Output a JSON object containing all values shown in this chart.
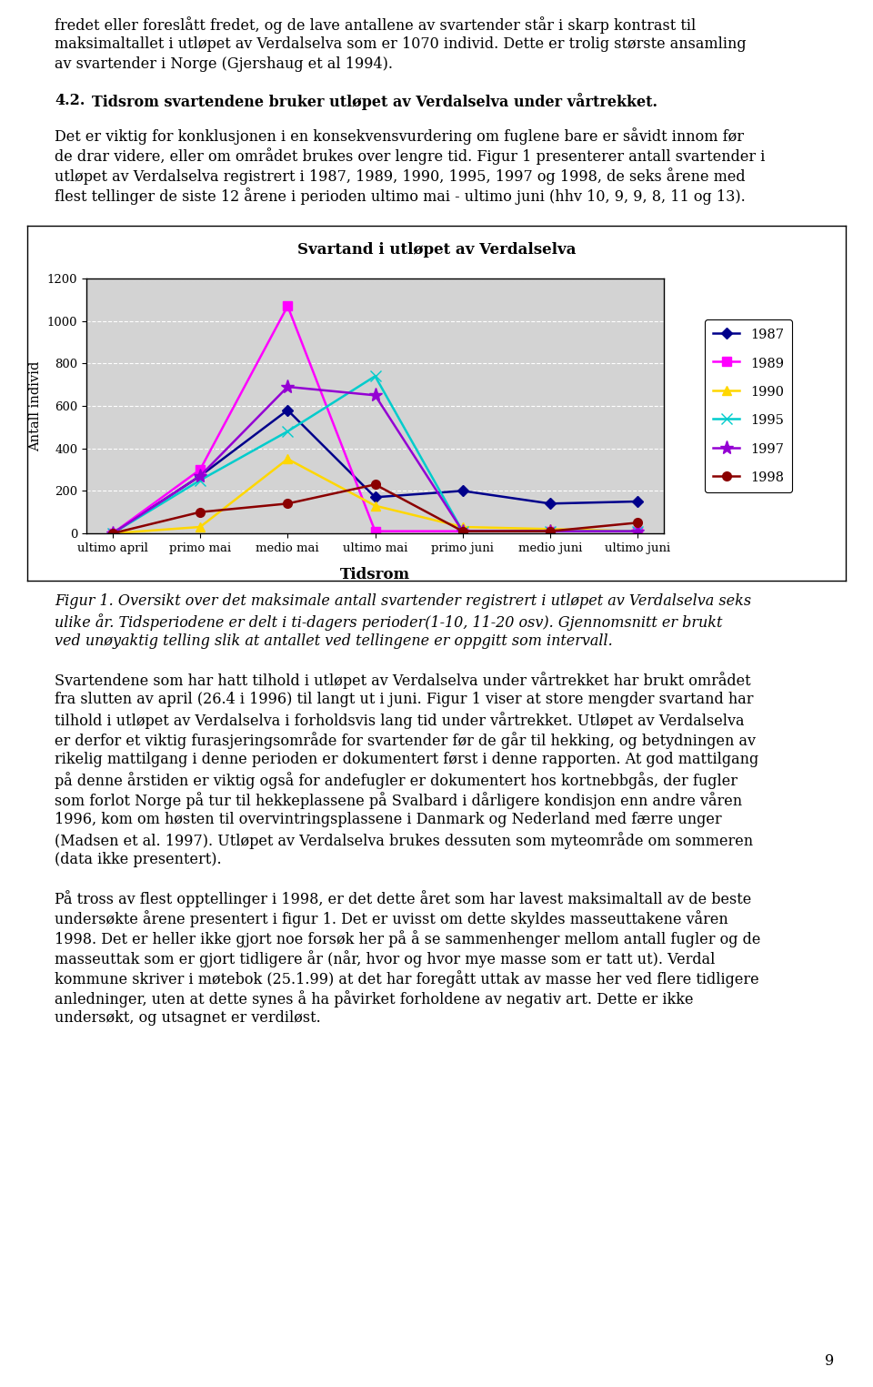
{
  "page_title_lines": [
    "fredet eller foreslått fredet, og de lave antallene av svartender står i skarp kontrast til",
    "maksimaltallet i utløpet av Verdalselva som er 1070 individ. Dette er trolig største ansamling",
    "av svartender i Norge (Gjershaug et al 1994)."
  ],
  "section_num": "4.2.",
  "section_title": "Tidsrom svartendene bruker utløpet av Verdalselva under vårtrekket.",
  "para1_lines": [
    "Det er viktig for konklusjonen i en konsekvensvurdering om fuglene bare er såvidt innom før",
    "de drar videre, eller om området brukes over lengre tid. Figur 1 presenterer antall svartender i",
    "utløpet av Verdalselva registrert i 1987, 1989, 1990, 1995, 1997 og 1998, de seks årene med",
    "flest tellinger de siste 12 årene i perioden ultimo mai - ultimo juni (hhv 10, 9, 9, 8, 11 og 13)."
  ],
  "chart_title": "Svartand i utløpet av Verdalselva",
  "x_labels": [
    "ultimo april",
    "primo mai",
    "medio mai",
    "ultimo mai",
    "primo juni",
    "medio juni",
    "ultimo juni"
  ],
  "x_label": "Tidsrom",
  "y_label": "Antall individ",
  "y_ticks": [
    0,
    200,
    400,
    600,
    800,
    1000,
    1200
  ],
  "series_1987": [
    0,
    270,
    580,
    170,
    200,
    140,
    150
  ],
  "series_1989": [
    0,
    300,
    1070,
    10,
    10,
    10,
    10
  ],
  "series_1990": [
    0,
    30,
    350,
    130,
    30,
    20,
    10
  ],
  "series_1995": [
    0,
    250,
    480,
    740,
    10,
    10,
    10
  ],
  "series_1997": [
    0,
    270,
    690,
    650,
    10,
    10,
    10
  ],
  "series_1998": [
    0,
    100,
    140,
    230,
    10,
    10,
    50
  ],
  "color_1987": "#00008B",
  "color_1989": "#FF00FF",
  "color_1990": "#FFD700",
  "color_1995": "#00CCCC",
  "color_1997": "#9400D3",
  "color_1998": "#8B0000",
  "fig_caption_line1": "Figur 1. Oversikt over det maksimale antall svartender registrert i utløpet av Verdalselva seks",
  "fig_caption_line2": "ulike år. Tidsperiodene er delt i ti-dagers perioder(1-10, 11-20 osv). Gjennomsnitt er brukt",
  "fig_caption_line3": "ved unøyaktig telling slik at antallet ved tellingene er oppgitt som intervall.",
  "para2_lines": [
    "Svartendene som har hatt tilhold i utløpet av Verdalselva under vårtrekket har brukt området",
    "fra slutten av april (26.4 i 1996) til langt ut i juni. Figur 1 viser at store mengder svartand har",
    "tilhold i utløpet av Verdalselva i forholdsvis lang tid under vårtrekket. Utløpet av Verdalselva",
    "er derfor et viktig furasjeringsområde for svartender før de går til hekking, og betydningen av",
    "rikelig mattilgang i denne perioden er dokumentert først i denne rapporten. At god mattilgang",
    "på denne årstiden er viktig også for andefugler er dokumentert hos kortnebbgås, der fugler",
    "som forlot Norge på tur til hekkeplassene på Svalbard i dårligere kondisjon enn andre våren",
    "1996, kom om høsten til overvintringsplassene i Danmark og Nederland med færre unger",
    "(Madsen et al. 1997). Utløpet av Verdalselva brukes dessuten som myteområde om sommeren",
    "(data ikke presentert)."
  ],
  "para3_lines": [
    "På tross av flest opptellinger i 1998, er det dette året som har lavest maksimaltall av de beste",
    "undersøkte årene presentert i figur 1. Det er uvisst om dette skyldes masseuttakene våren",
    "1998. Det er heller ikke gjort noe forsøk her på å se sammenhenger mellom antall fugler og de",
    "masseuttak som er gjort tidligere år (når, hvor og hvor mye masse som er tatt ut). Verdal",
    "kommune skriver i møtebok (25.1.99) at det har foregått uttak av masse her ved flere tidligere",
    "anledninger, uten at dette synes å ha påvirket forholdene av negativ art. Dette er ikke",
    "undersøkt, og utsagnet er verdiløst."
  ],
  "page_number": "9",
  "bg_color": "#ffffff",
  "chart_bg_color": "#d3d3d3"
}
